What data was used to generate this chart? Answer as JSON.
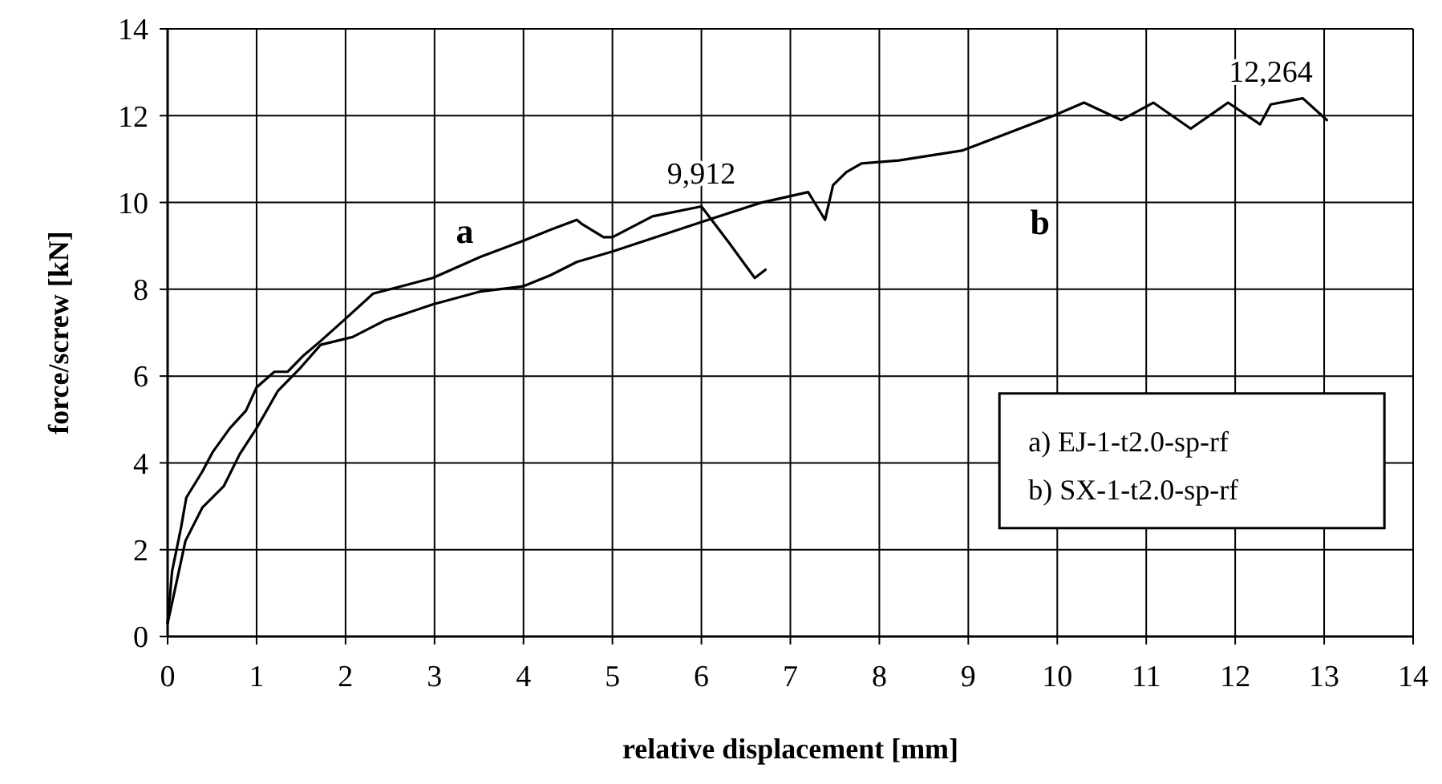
{
  "chart_data": {
    "type": "line",
    "xlabel": "relative displacement [mm]",
    "ylabel": "force/screw [kN]",
    "xlim": [
      0,
      14
    ],
    "ylim": [
      0,
      14
    ],
    "xticks": [
      0,
      1,
      2,
      3,
      4,
      5,
      6,
      7,
      8,
      9,
      10,
      11,
      12,
      13,
      14
    ],
    "yticks": [
      0,
      2,
      4,
      6,
      8,
      10,
      12,
      14
    ],
    "grid": true,
    "legend": false,
    "marker": "none",
    "line_style": "solid",
    "series": [
      {
        "name": "a",
        "color": "#000000",
        "x": [
          0,
          0.05,
          0.15,
          0.21,
          0.39,
          0.51,
          0.7,
          0.88,
          1.0,
          1.2,
          1.35,
          1.53,
          1.71,
          2.01,
          2.31,
          2.98,
          3.52,
          4.0,
          4.3,
          4.6,
          4.66,
          4.9,
          5.0,
          5.45,
          6.0,
          6.3,
          6.6,
          6.72
        ],
        "values": [
          0.3,
          1.5,
          2.5,
          3.2,
          3.8,
          4.26,
          4.8,
          5.2,
          5.74,
          6.1,
          6.1,
          6.48,
          6.79,
          7.34,
          7.9,
          8.26,
          8.75,
          9.12,
          9.37,
          9.6,
          9.5,
          9.2,
          9.2,
          9.68,
          9.91,
          9.1,
          8.26,
          8.45
        ]
      },
      {
        "name": "b",
        "color": "#000000",
        "x": [
          0,
          0.2,
          0.39,
          0.63,
          0.81,
          1.0,
          1.24,
          1.48,
          1.72,
          2.08,
          2.44,
          2.98,
          3.52,
          4.0,
          4.3,
          4.6,
          5.0,
          6.0,
          6.66,
          7.2,
          7.39,
          7.48,
          7.63,
          7.8,
          8.22,
          8.94,
          9.96,
          10.3,
          10.72,
          11.08,
          11.5,
          11.92,
          12.28,
          12.4,
          12.76,
          13.03
        ],
        "values": [
          0.3,
          2.2,
          2.97,
          3.46,
          4.2,
          4.8,
          5.66,
          6.16,
          6.72,
          6.9,
          7.28,
          7.65,
          7.95,
          8.07,
          8.32,
          8.63,
          8.87,
          9.55,
          9.99,
          10.24,
          9.6,
          10.4,
          10.7,
          10.9,
          10.97,
          11.2,
          12.0,
          12.3,
          11.9,
          12.3,
          11.7,
          12.3,
          11.8,
          12.26,
          12.4,
          11.9
        ]
      }
    ],
    "annotations": [
      {
        "text": "9,912",
        "x": 6.0,
        "y": 9.91
      },
      {
        "text": "12,264",
        "x": 12.4,
        "y": 12.26
      },
      "a) EJ-1-t2.0-sp-rf",
      "b) SX-1-t2.0-sp-rf"
    ]
  }
}
